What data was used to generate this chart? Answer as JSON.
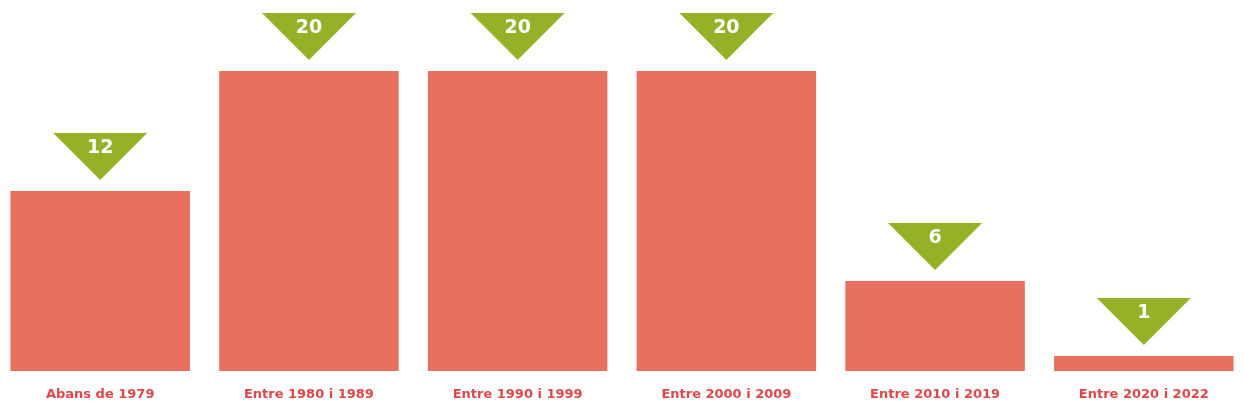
{
  "chart_data": {
    "type": "bar",
    "categories": [
      "Abans de 1979",
      "Entre 1980 i 1989",
      "Entre 1990 i 1999",
      "Entre 2000 i 2009",
      "Entre 2010 i 2019",
      "Entre 2020 i 2022"
    ],
    "values": [
      12,
      20,
      20,
      20,
      6,
      1
    ],
    "color": "#e8705f",
    "data_labels": true
  }
}
